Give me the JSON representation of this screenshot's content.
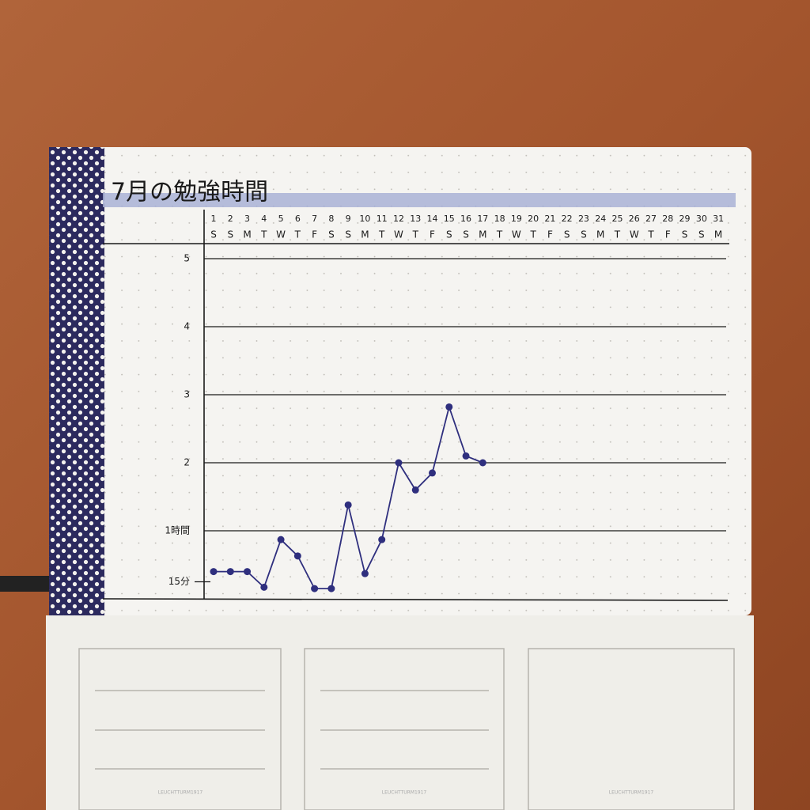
{
  "chart_data": {
    "type": "line",
    "title": "7月の勉強時間",
    "categories": [
      "1",
      "2",
      "3",
      "4",
      "5",
      "6",
      "7",
      "8",
      "9",
      "10",
      "11",
      "12",
      "13",
      "14",
      "15",
      "16",
      "17",
      "18",
      "19",
      "20",
      "21",
      "22",
      "23",
      "24",
      "25",
      "26",
      "27",
      "28",
      "29",
      "30",
      "31"
    ],
    "weekdays": [
      "S",
      "S",
      "M",
      "T",
      "W",
      "T",
      "F",
      "S",
      "S",
      "M",
      "T",
      "W",
      "T",
      "F",
      "S",
      "S",
      "M",
      "T",
      "W",
      "T",
      "F",
      "S",
      "S",
      "M",
      "T",
      "W",
      "T",
      "F",
      "S",
      "S",
      "M"
    ],
    "series": [
      {
        "name": null,
        "color": "#2f2f7e",
        "values": [
          0.4,
          0.4,
          0.4,
          0.17,
          0.87,
          0.63,
          0.15,
          0.15,
          1.38,
          0.37,
          0.87,
          2.0,
          1.6,
          1.85,
          2.82,
          2.1,
          2.0,
          null,
          null,
          null,
          null,
          null,
          null,
          null,
          null,
          null,
          null,
          null,
          null,
          null,
          null
        ]
      }
    ],
    "ylim": [
      0,
      5.25
    ],
    "yticks": [
      {
        "value": 0.25,
        "label": "15分"
      },
      30,
      45,
      {
        "value": 1,
        "label": "1時間"
      },
      2,
      3,
      4,
      5
    ],
    "grid": true,
    "brand": "LEUCHTTURM1917"
  }
}
